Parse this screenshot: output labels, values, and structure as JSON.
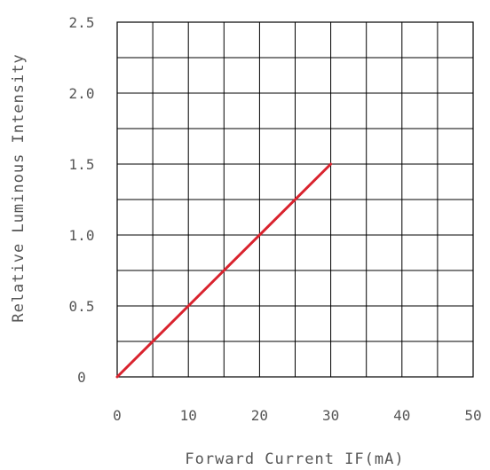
{
  "chart_data": {
    "type": "line",
    "title": "",
    "xlabel": "Forward Current IF(mA)",
    "ylabel": "Relative Luminous Intensity",
    "xlim": [
      0,
      50
    ],
    "ylim": [
      0,
      2.5
    ],
    "x_ticks": [
      "0",
      "10",
      "20",
      "30",
      "40",
      "50"
    ],
    "y_ticks": [
      "0",
      "0.5",
      "1.0",
      "1.5",
      "2.0",
      "2.5"
    ],
    "x_tick_values": [
      0,
      10,
      20,
      30,
      40,
      50
    ],
    "y_tick_values": [
      0,
      0.5,
      1.0,
      1.5,
      2.0,
      2.5
    ],
    "grid": true,
    "grid_x_step": 5,
    "grid_y_step": 0.25,
    "line_color": "#d9232e",
    "series": [
      {
        "x": [
          0,
          30
        ],
        "y": [
          0,
          1.5
        ]
      }
    ]
  }
}
